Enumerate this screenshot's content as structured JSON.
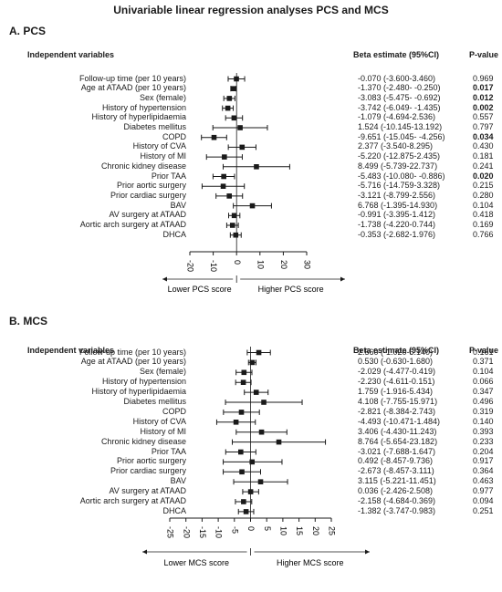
{
  "title": "Univariable linear regression analyses PCS and MCS",
  "chart_data": [
    {
      "type": "forest",
      "panel_label": "A. PCS",
      "headers": {
        "variables": "Independent variables",
        "beta": "Beta estimate (95%CI)",
        "p": "P-value"
      },
      "xlim": [
        -20,
        30
      ],
      "ticks": [
        -20,
        -10,
        0,
        10,
        20,
        30
      ],
      "arrow_left": "Lower PCS score",
      "arrow_right": "Higher PCS score",
      "rows": [
        {
          "label": "Follow-up time (per 10 years)",
          "beta": -0.07,
          "lo": -3.6,
          "hi": 3.46,
          "text": "-0.070 (-3.600-3.460)",
          "p": "0.969",
          "sig": false
        },
        {
          "label": "Age at ATAAD (per 10 years)",
          "beta": -1.37,
          "lo": -2.48,
          "hi": -0.25,
          "text": "-1.370 (-2.480- -0.250)",
          "p": "0.017",
          "sig": true
        },
        {
          "label": "Sex (female)",
          "beta": -3.083,
          "lo": -5.475,
          "hi": -0.692,
          "text": "-3.083 (-5.475- -0.692)",
          "p": "0.012",
          "sig": true
        },
        {
          "label": "History of hypertension",
          "beta": -3.742,
          "lo": -6.049,
          "hi": -1.435,
          "text": "-3.742 (-6.049- -1.435)",
          "p": "0.002",
          "sig": true
        },
        {
          "label": "History of hyperlipidaemia",
          "beta": -1.079,
          "lo": -4.694,
          "hi": 2.536,
          "text": "-1.079 (-4.694-2.536)",
          "p": "0.557",
          "sig": false
        },
        {
          "label": "Diabetes mellitus",
          "beta": 1.524,
          "lo": -10.145,
          "hi": 13.192,
          "text": "1.524 (-10.145-13.192)",
          "p": "0.797",
          "sig": false
        },
        {
          "label": "COPD",
          "beta": -9.651,
          "lo": -15.045,
          "hi": -4.256,
          "text": "-9.651 (-15.045- -4.256)",
          "p": "0.034",
          "sig": true
        },
        {
          "label": "History of CVA",
          "beta": 2.377,
          "lo": -3.54,
          "hi": 8.295,
          "text": "2.377 (-3.540-8.295)",
          "p": "0.430",
          "sig": false
        },
        {
          "label": "History of MI",
          "beta": -5.22,
          "lo": -12.875,
          "hi": 2.435,
          "text": "-5.220 (-12.875-2.435)",
          "p": "0.181",
          "sig": false
        },
        {
          "label": "Chronic kidney disease",
          "beta": 8.499,
          "lo": -5.739,
          "hi": 22.737,
          "text": "8.499 (-5.739-22.737)",
          "p": "0.241",
          "sig": false
        },
        {
          "label": "Prior TAA",
          "beta": -5.483,
          "lo": -10.08,
          "hi": -0.886,
          "text": "-5.483 (-10.080- -0.886)",
          "p": "0.020",
          "sig": true
        },
        {
          "label": "Prior aortic surgery",
          "beta": -5.716,
          "lo": -14.759,
          "hi": 3.328,
          "text": "-5.716 (-14.759-3.328)",
          "p": "0.215",
          "sig": false
        },
        {
          "label": "Prior cardiac surgery",
          "beta": -3.121,
          "lo": -8.799,
          "hi": 2.556,
          "text": "-3.121 (-8.799-2.556)",
          "p": "0.280",
          "sig": false
        },
        {
          "label": "BAV",
          "beta": 6.768,
          "lo": -1.395,
          "hi": 14.93,
          "text": "6.768 (-1.395-14.930)",
          "p": "0.104",
          "sig": false
        },
        {
          "label": "AV surgery at ATAAD",
          "beta": -0.991,
          "lo": -3.395,
          "hi": 1.412,
          "text": "-0.991 (-3.395-1.412)",
          "p": "0.418",
          "sig": false
        },
        {
          "label": "Aortic arch surgery at ATAAD",
          "beta": -1.738,
          "lo": -4.22,
          "hi": 0.744,
          "text": "-1.738 (-4.220-0.744)",
          "p": "0.169",
          "sig": false
        },
        {
          "label": "DHCA",
          "beta": -0.353,
          "lo": -2.682,
          "hi": 1.976,
          "text": "-0.353 (-2.682-1.976)",
          "p": "0.766",
          "sig": false
        }
      ]
    },
    {
      "type": "forest",
      "panel_label": "B. MCS",
      "headers": {
        "variables": "Independent variables",
        "beta": "Beta estimate (95%CI)",
        "p": "P-value"
      },
      "xlim": [
        -25,
        25
      ],
      "ticks": [
        -25,
        -20,
        -15,
        -10,
        -5,
        0,
        5,
        10,
        15,
        20,
        25
      ],
      "arrow_left": "Lower MCS score",
      "arrow_right": "Higher MCS score",
      "rows": [
        {
          "label": "Follow-up time (per 10 years)",
          "beta": 2.56,
          "lo": -1.02,
          "hi": 6.14,
          "text": "2.560 (-1.020-6.140)",
          "p": "0.161",
          "sig": false
        },
        {
          "label": "Age at ATAAD (per 10 years)",
          "beta": 0.53,
          "lo": -0.63,
          "hi": 1.68,
          "text": "0.530 (-0.630-1.680)",
          "p": "0.371",
          "sig": false
        },
        {
          "label": "Sex (female)",
          "beta": -2.029,
          "lo": -4.477,
          "hi": 0.419,
          "text": "-2.029 (-4.477-0.419)",
          "p": "0.104",
          "sig": false
        },
        {
          "label": "History of hypertension",
          "beta": -2.23,
          "lo": -4.611,
          "hi": 0.151,
          "text": "-2.230 (-4.611-0.151)",
          "p": "0.066",
          "sig": false
        },
        {
          "label": "History of hyperlipidaemia",
          "beta": 1.759,
          "lo": -1.916,
          "hi": 5.434,
          "text": "1.759 (-1.916-5.434)",
          "p": "0.347",
          "sig": false
        },
        {
          "label": "Diabetes mellitus",
          "beta": 4.108,
          "lo": -7.755,
          "hi": 15.971,
          "text": "4.108 (-7.755-15.971)",
          "p": "0.496",
          "sig": false
        },
        {
          "label": "COPD",
          "beta": -2.821,
          "lo": -8.384,
          "hi": 2.743,
          "text": "-2.821 (-8.384-2.743)",
          "p": "0.319",
          "sig": false
        },
        {
          "label": "History of CVA",
          "beta": -4.493,
          "lo": -10.471,
          "hi": 1.484,
          "text": "-4.493 (-10.471-1.484)",
          "p": "0.140",
          "sig": false
        },
        {
          "label": "History of MI",
          "beta": 3.406,
          "lo": -4.43,
          "hi": 11.243,
          "text": "3.406 (-4.430-11.243)",
          "p": "0.393",
          "sig": false
        },
        {
          "label": "Chronic kidney disease",
          "beta": 8.764,
          "lo": -5.654,
          "hi": 23.182,
          "text": "8.764 (-5.654-23.182)",
          "p": "0.233",
          "sig": false
        },
        {
          "label": "Prior TAA",
          "beta": -3.021,
          "lo": -7.688,
          "hi": 1.647,
          "text": "-3.021 (-7.688-1.647)",
          "p": "0.204",
          "sig": false
        },
        {
          "label": "Prior aortic surgery",
          "beta": 0.492,
          "lo": -8.457,
          "hi": 9.736,
          "text": "0.492 (-8.457-9.736)",
          "p": "0.917",
          "sig": false
        },
        {
          "label": "Prior cardiac surgery",
          "beta": -2.673,
          "lo": -8.457,
          "hi": 3.111,
          "text": "-2.673 (-8.457-3.111)",
          "p": "0.364",
          "sig": false
        },
        {
          "label": "BAV",
          "beta": 3.115,
          "lo": -5.221,
          "hi": 11.451,
          "text": "3.115 (-5.221-11.451)",
          "p": "0.463",
          "sig": false
        },
        {
          "label": "AV surgery at ATAAD",
          "beta": 0.036,
          "lo": -2.426,
          "hi": 2.508,
          "text": "0.036 (-2.426-2.508)",
          "p": "0.977",
          "sig": false
        },
        {
          "label": "Aortic arch surgery at ATAAD",
          "beta": -2.158,
          "lo": -4.684,
          "hi": 0.369,
          "text": "-2.158 (-4.684-0.369)",
          "p": "0.094",
          "sig": false
        },
        {
          "label": "DHCA",
          "beta": -1.382,
          "lo": -3.747,
          "hi": 0.983,
          "text": "-1.382 (-3.747-0.983)",
          "p": "0.251",
          "sig": false
        }
      ]
    }
  ]
}
